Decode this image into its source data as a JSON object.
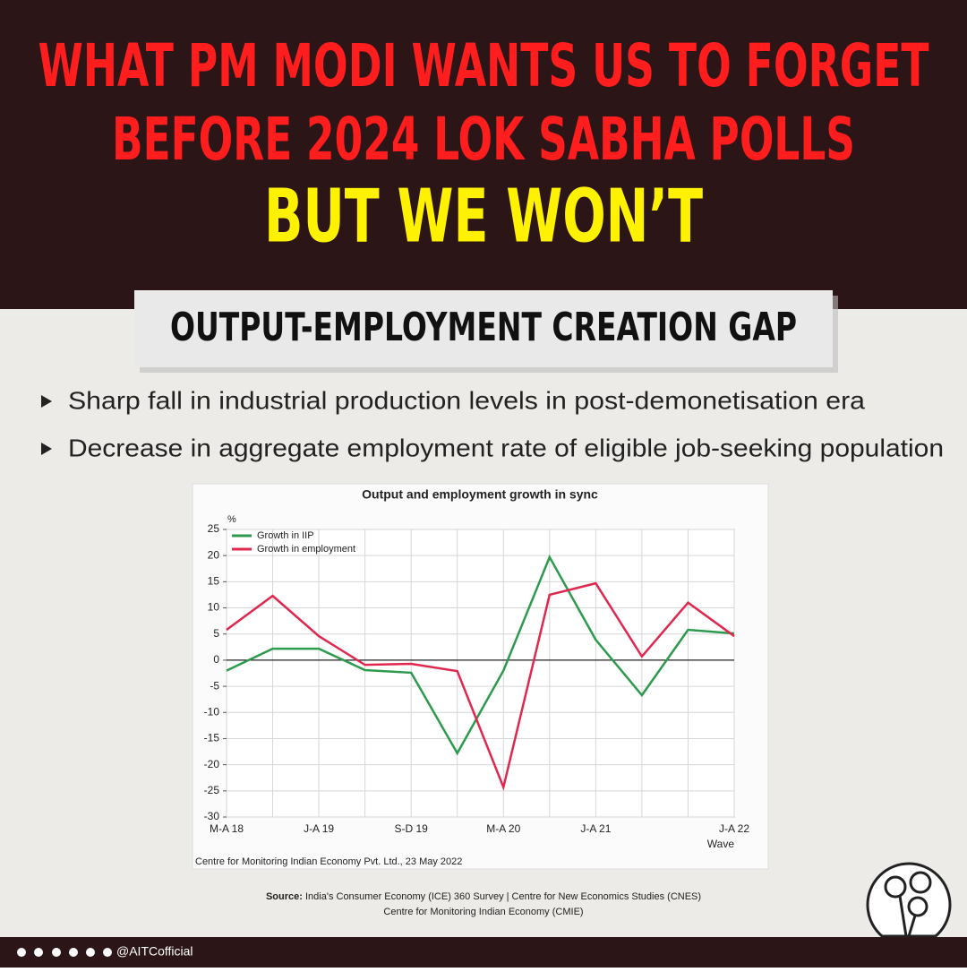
{
  "header": {
    "line1": "WHAT PM MODI WANTS US TO FORGET",
    "line2": "BEFORE 2024 LOK SABHA POLLS",
    "line3": "BUT WE WON’T"
  },
  "section_title": "OUTPUT-EMPLOYMENT CREATION GAP",
  "bullets": [
    "Sharp fall in industrial production levels in post-demonetisation era",
    "Decrease in aggregate employment rate of eligible job-seeking population"
  ],
  "chart_data": {
    "type": "line",
    "title": "Output and employment growth in sync",
    "y_unit": "%",
    "x_label": "Wave",
    "categories": [
      "M-A 18",
      null,
      "J-A 19",
      null,
      "S-D 19",
      null,
      "M-A 20",
      null,
      "J-A 21",
      null,
      null,
      "J-A 22"
    ],
    "series": [
      {
        "name": "Growth in IIP",
        "color": "#2e9a4e",
        "values": [
          -2,
          2.2,
          2.2,
          -1.9,
          -2.4,
          -17.8,
          -2,
          19.7,
          3.9,
          -6.7,
          5.8,
          5.1
        ]
      },
      {
        "name": "Growth in employment",
        "color": "#e0284f",
        "values": [
          5.8,
          12.3,
          4.6,
          -0.9,
          -0.7,
          -2.1,
          -24.3,
          12.5,
          14.7,
          0.7,
          11,
          4.6
        ]
      }
    ],
    "ylim": [
      -30,
      25
    ],
    "yticks": [
      -30,
      -25,
      -20,
      -15,
      -10,
      -5,
      0,
      5,
      10,
      15,
      20,
      25
    ],
    "grid": true,
    "legend": "upper left",
    "caption": "Centre for Monitoring Indian Economy Pvt. Ltd., 23 May 2022"
  },
  "source": {
    "label": "Source:",
    "lines": [
      "India's Consumer Economy (ICE) 360 Survey | Centre for New Economics Studies (CNES)",
      "Centre for Monitoring Indian Economy (CMIE)"
    ]
  },
  "footer": {
    "handle": "@AITCofficial"
  }
}
